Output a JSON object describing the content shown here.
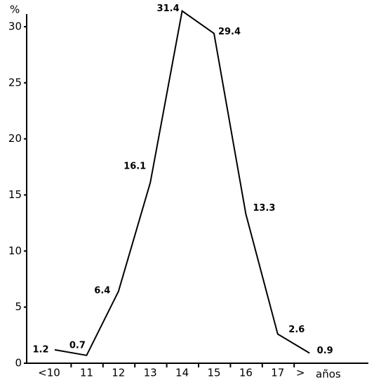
{
  "chart_data": {
    "type": "line",
    "y_label": "%",
    "x_label": "años",
    "categories": [
      "<10",
      "11",
      "12",
      "13",
      "14",
      "15",
      "16",
      "17",
      ">"
    ],
    "values": [
      1.2,
      0.7,
      6.4,
      16.1,
      31.4,
      29.4,
      13.3,
      2.6,
      0.9
    ],
    "color": "#000000",
    "ylim": [
      0,
      30
    ],
    "yticks": [
      0,
      5,
      10,
      15,
      20,
      25,
      30
    ]
  }
}
